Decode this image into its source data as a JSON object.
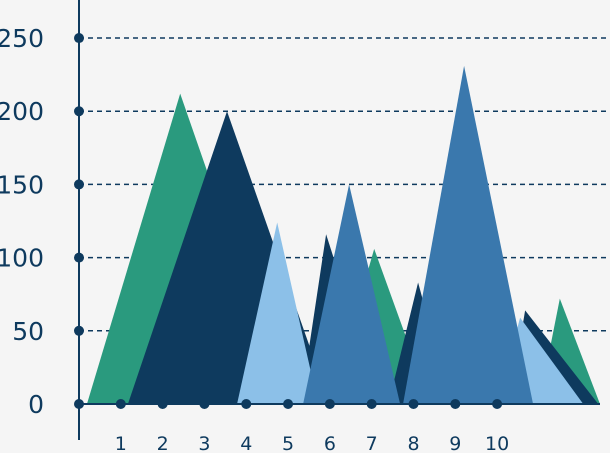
{
  "chart_data": {
    "type": "triangle",
    "xlim": [
      0,
      12.7
    ],
    "ylim": [
      0,
      276
    ],
    "xticks": [
      1,
      2,
      3,
      4,
      5,
      6,
      7,
      8,
      9,
      10
    ],
    "yticks": [
      0,
      50,
      100,
      150,
      200,
      250
    ],
    "grid": true,
    "series": [
      {
        "color": "#2a9a7e",
        "x": [
          0.19,
          2.42,
          5.0
        ],
        "values": [
          0,
          212,
          0
        ]
      },
      {
        "color": "#2a9a7e",
        "x": [
          11.0,
          11.5,
          12.46
        ],
        "values": [
          0,
          72,
          0
        ]
      },
      {
        "color": "#0e3a5e",
        "x": [
          10.3,
          10.67,
          12.42
        ],
        "values": [
          0,
          64,
          0
        ]
      },
      {
        "color": "#8cc0e8",
        "x": [
          10.0,
          10.55,
          12.06
        ],
        "values": [
          0,
          59,
          0
        ]
      },
      {
        "color": "#0e3a5e",
        "x": [
          1.17,
          3.54,
          6.0
        ],
        "values": [
          0,
          200,
          0
        ]
      },
      {
        "color": "#2a9a7e",
        "x": [
          6.0,
          7.06,
          8.4
        ],
        "values": [
          0,
          106,
          0
        ]
      },
      {
        "color": "#0e3a5e",
        "x": [
          5.3,
          5.91,
          7.2
        ],
        "values": [
          0,
          116,
          0
        ]
      },
      {
        "color": "#0e3a5e",
        "x": [
          7.4,
          8.11,
          8.9
        ],
        "values": [
          0,
          83,
          0
        ]
      },
      {
        "color": "#8cc0e8",
        "x": [
          3.78,
          4.74,
          5.72
        ],
        "values": [
          0,
          124,
          0
        ]
      },
      {
        "color": "#3a78ad",
        "x": [
          5.36,
          6.46,
          7.68
        ],
        "values": [
          0,
          150,
          0
        ]
      },
      {
        "color": "#3a78ad",
        "x": [
          7.75,
          9.21,
          10.86
        ],
        "values": [
          0,
          231,
          0
        ]
      }
    ]
  }
}
